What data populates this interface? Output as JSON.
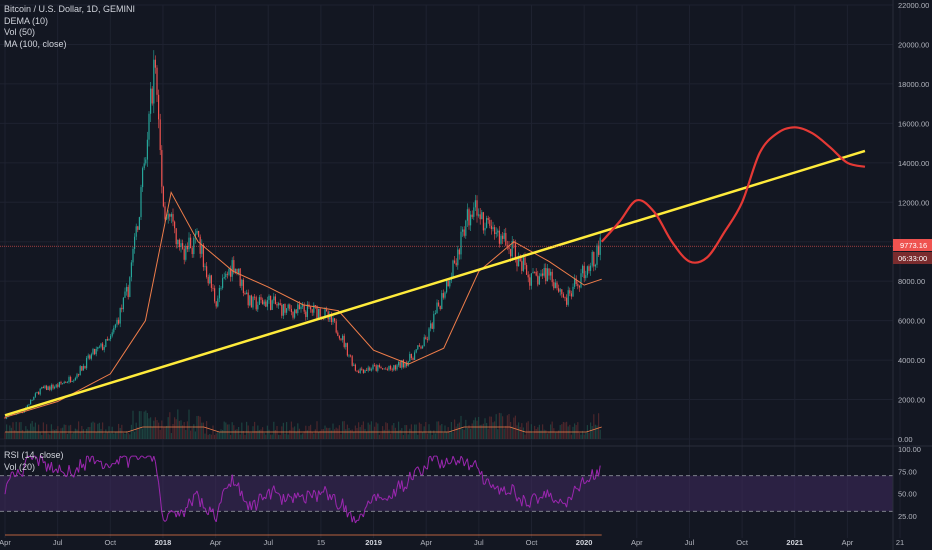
{
  "legend": {
    "symbol": "Bitcoin / U.S. Dollar, 1D, GEMINI",
    "dema": "DEMA (10)",
    "vol": "Vol (50)",
    "ma": "MA (100, close)"
  },
  "rsi_legend": {
    "rsi": "RSI (14, close)",
    "vol": "Vol (20)"
  },
  "price_badge": {
    "price": "9773.16",
    "countdown": "06:33:00",
    "color": "#ef5350"
  },
  "colors": {
    "background": "#131722",
    "trendline": "#ffeb3b",
    "projection": "#e53935",
    "ma": "#ef7d4a",
    "candle_up": "#26a69a",
    "candle_down": "#ef5350",
    "rsi": "#9c27b0",
    "rsi_band": "#3f2a5e"
  },
  "chart_data": {
    "type": "line",
    "title": "Bitcoin / U.S. Dollar, 1D, GEMINI",
    "ylim": [
      0,
      22000
    ],
    "y_ticks": [
      "22000.00",
      "20000.00",
      "18000.00",
      "16000.00",
      "14000.00",
      "12000.00",
      "10000.00",
      "8000.00",
      "6000.00",
      "4000.00",
      "2000.00",
      "0.00"
    ],
    "x_ticks": [
      "Apr",
      "Jul",
      "Oct",
      "2018",
      "Apr",
      "Jul",
      "15",
      "2019",
      "Apr",
      "Jul",
      "Oct",
      "2020",
      "Apr",
      "Jul",
      "Oct",
      "2021",
      "Apr",
      "21"
    ],
    "bold_x_ticks": [
      "2018",
      "2019",
      "2020",
      "2021"
    ],
    "grid": true,
    "series": [
      {
        "name": "Bitcoin / U.S. Dollar, 1D, GEMINI",
        "x": [
          "2017-04",
          "2017-05",
          "2017-06",
          "2017-07",
          "2017-08",
          "2017-09",
          "2017-10",
          "2017-11",
          "2017-12",
          "2017-12-17",
          "2018-01",
          "2018-02",
          "2018-03",
          "2018-04",
          "2018-05",
          "2018-06",
          "2018-07",
          "2018-08",
          "2018-09",
          "2018-10",
          "2018-11",
          "2018-12",
          "2019-01",
          "2019-02",
          "2019-03",
          "2019-04",
          "2019-05",
          "2019-06",
          "2019-06-26",
          "2019-07",
          "2019-08",
          "2019-09",
          "2019-10",
          "2019-11",
          "2019-12",
          "2020-01",
          "2020-02"
        ],
        "values": [
          1100,
          1400,
          2500,
          2700,
          3200,
          4300,
          5000,
          7500,
          14000,
          19500,
          12000,
          9500,
          10000,
          7000,
          9000,
          6800,
          7000,
          6500,
          6500,
          6500,
          5500,
          3500,
          3600,
          3500,
          4000,
          5000,
          7500,
          10000,
          12500,
          11000,
          10500,
          9500,
          8000,
          8500,
          7000,
          8500,
          9800
        ]
      },
      {
        "name": "MA (100, close)",
        "x": [
          "2017-04",
          "2017-07",
          "2017-10",
          "2017-12",
          "2018-01-15",
          "2018-03",
          "2018-05",
          "2018-07",
          "2018-09",
          "2018-11",
          "2019-01",
          "2019-03",
          "2019-05",
          "2019-07",
          "2019-09",
          "2019-11",
          "2020-01",
          "2020-02"
        ],
        "values": [
          1100,
          1900,
          3300,
          6000,
          12500,
          10000,
          8500,
          7700,
          6800,
          6500,
          4500,
          3800,
          4600,
          8500,
          10000,
          9000,
          7800,
          8100
        ]
      }
    ],
    "trendline": {
      "x": [
        "2017-04",
        "2021-05"
      ],
      "values": [
        1200,
        14600
      ]
    },
    "projection": {
      "x": [
        "2020-02",
        "2020-03",
        "2020-04",
        "2020-05",
        "2020-06",
        "2020-07",
        "2020-08",
        "2020-09",
        "2020-10",
        "2020-11",
        "2020-12",
        "2021-01",
        "2021-02",
        "2021-03",
        "2021-04",
        "2021-05"
      ],
      "values": [
        10000,
        11000,
        12100,
        11500,
        10000,
        9000,
        9200,
        10500,
        12000,
        14500,
        15500,
        15800,
        15500,
        14800,
        14000,
        13800
      ]
    },
    "rsi": {
      "ylim": [
        0,
        100
      ],
      "ticks": [
        "100.00",
        "75.00",
        "50.00",
        "25.00"
      ],
      "upper": 70,
      "lower": 30
    }
  }
}
